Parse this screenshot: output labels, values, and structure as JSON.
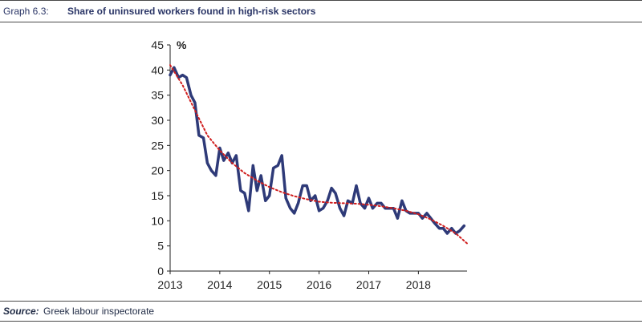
{
  "header": {
    "graph_number": "Graph 6.3:",
    "title": "Share of uninsured workers found in high-risk sectors"
  },
  "footer": {
    "source_label": "Source:",
    "source_text": "Greek labour inspectorate"
  },
  "chart_data": {
    "type": "line",
    "title": "Share of uninsured workers found in high-risk sectors",
    "unit_label": "%",
    "xlabel": "",
    "ylabel": "",
    "ylim": [
      0,
      45
    ],
    "yticks": [
      0,
      5,
      10,
      15,
      20,
      25,
      30,
      35,
      40,
      45
    ],
    "xlim": [
      2013,
      2018.98
    ],
    "xticks": [
      "2013",
      "2014",
      "2015",
      "2016",
      "2017",
      "2018"
    ],
    "grid": false,
    "legend": "none",
    "colors": {
      "series": "#2e3a78",
      "trend": "#d01e1e",
      "axis": "#222222"
    },
    "series": [
      {
        "x": [
          2013.0,
          2013.08,
          2013.17,
          2013.25,
          2013.33,
          2013.42,
          2013.5,
          2013.58,
          2013.67,
          2013.75,
          2013.83,
          2013.92,
          2014.0,
          2014.08,
          2014.17,
          2014.25,
          2014.33,
          2014.42,
          2014.5,
          2014.58,
          2014.67,
          2014.75,
          2014.83,
          2014.92,
          2015.0,
          2015.08,
          2015.17,
          2015.25,
          2015.33,
          2015.42,
          2015.5,
          2015.58,
          2015.67,
          2015.75,
          2015.83,
          2015.92,
          2016.0,
          2016.08,
          2016.17,
          2016.25,
          2016.33,
          2016.42,
          2016.5,
          2016.58,
          2016.67,
          2016.75,
          2016.83,
          2016.92,
          2017.0,
          2017.08,
          2017.17,
          2017.25,
          2017.33,
          2017.42,
          2017.5,
          2017.58,
          2017.67,
          2017.75,
          2017.83,
          2017.92,
          2018.0,
          2018.08,
          2018.17,
          2018.25,
          2018.33,
          2018.42,
          2018.5,
          2018.58,
          2018.67,
          2018.75,
          2018.83,
          2018.92
        ],
        "values": [
          39.0,
          40.5,
          38.5,
          39.0,
          38.5,
          35.0,
          33.5,
          27.0,
          26.5,
          21.5,
          20.0,
          19.0,
          24.5,
          22.0,
          23.5,
          21.5,
          23.0,
          16.0,
          15.5,
          12.0,
          21.0,
          16.0,
          19.0,
          14.0,
          15.0,
          20.5,
          21.0,
          23.0,
          14.5,
          12.5,
          11.5,
          13.5,
          17.0,
          17.0,
          14.0,
          15.0,
          12.0,
          12.5,
          14.0,
          16.5,
          15.5,
          12.5,
          11.0,
          14.0,
          13.5,
          17.0,
          13.5,
          12.5,
          14.5,
          12.5,
          13.5,
          13.5,
          12.5,
          12.5,
          12.5,
          10.5,
          14.0,
          12.0,
          11.5,
          11.5,
          11.5,
          10.5,
          11.5,
          10.5,
          9.5,
          8.5,
          8.5,
          7.5,
          8.5,
          7.5,
          8.0,
          9.0
        ]
      },
      {
        "x": [
          2013.0,
          2013.25,
          2013.5,
          2013.75,
          2014.0,
          2014.25,
          2014.5,
          2014.75,
          2015.0,
          2015.25,
          2015.5,
          2015.75,
          2016.0,
          2016.25,
          2016.5,
          2016.75,
          2017.0,
          2017.25,
          2017.5,
          2017.75,
          2018.0,
          2018.25,
          2018.5,
          2018.75,
          2018.98
        ],
        "values": [
          41.0,
          37.0,
          32.0,
          27.0,
          24.0,
          21.5,
          19.5,
          18.0,
          16.7,
          15.7,
          14.9,
          14.3,
          13.8,
          13.6,
          13.5,
          13.4,
          13.2,
          12.9,
          12.5,
          12.0,
          11.3,
          10.3,
          9.0,
          7.5,
          5.5
        ]
      }
    ]
  }
}
